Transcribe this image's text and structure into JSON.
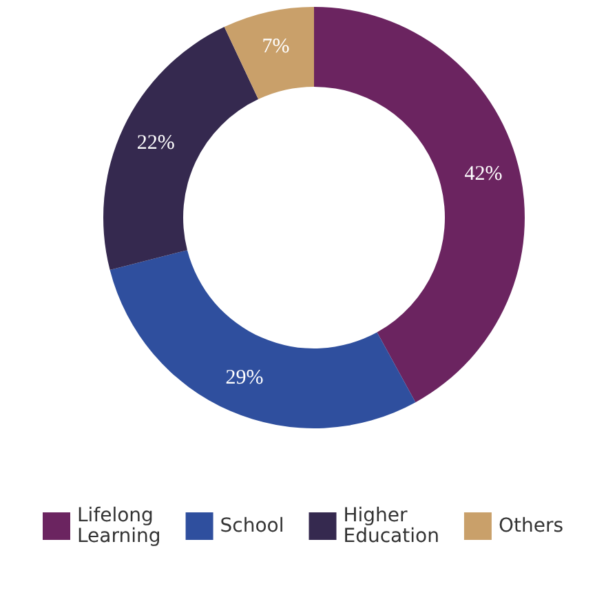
{
  "chart_data": {
    "type": "donut",
    "categories": [
      "Lifelong Learning",
      "School",
      "Higher Education",
      "Others"
    ],
    "values": [
      42,
      29,
      22,
      7
    ],
    "colors": [
      "#6b2460",
      "#2f4f9e",
      "#35294f",
      "#c9a06a"
    ],
    "value_labels": [
      "42%",
      "29%",
      "22%",
      "7%"
    ],
    "legend": "bottom"
  }
}
